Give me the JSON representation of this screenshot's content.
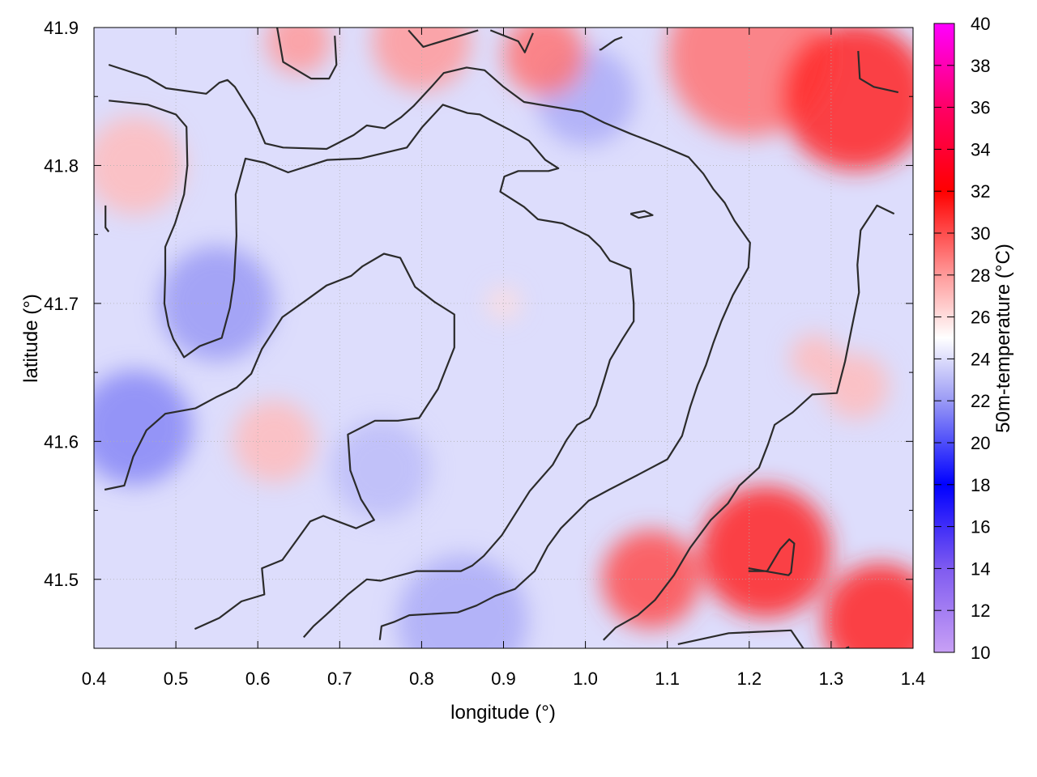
{
  "chart_data": {
    "type": "heatmap",
    "xlabel": "longitude (°)",
    "ylabel": "latitude (°)",
    "colorbar_label": "50m-temperature (°C)",
    "xlim": [
      0.4,
      1.4
    ],
    "ylim": [
      41.45,
      41.9
    ],
    "x_ticks": [
      "0.4",
      "0.5",
      "0.6",
      "0.7",
      "0.8",
      "0.9",
      "1.0",
      "1.1",
      "1.2",
      "1.3",
      "1.4"
    ],
    "y_ticks": [
      "41.5",
      "41.6",
      "41.7",
      "41.8",
      "41.9"
    ],
    "grid": true,
    "colorbar": {
      "min": 10,
      "max": 40,
      "ticks": [
        "10",
        "12",
        "14",
        "16",
        "18",
        "20",
        "22",
        "24",
        "26",
        "28",
        "30",
        "32",
        "34",
        "36",
        "38",
        "40"
      ],
      "colors": [
        {
          "t": 10,
          "color": "#c8a0f5"
        },
        {
          "t": 14,
          "color": "#7f5bf0"
        },
        {
          "t": 18,
          "color": "#0000ff"
        },
        {
          "t": 22,
          "color": "#9a9af5"
        },
        {
          "t": 25,
          "color": "#ffffff"
        },
        {
          "t": 28,
          "color": "#ff9a9a"
        },
        {
          "t": 32,
          "color": "#ff0000"
        },
        {
          "t": 36,
          "color": "#ff0066"
        },
        {
          "t": 40,
          "color": "#ff00ff"
        }
      ]
    },
    "base_temperature": 24,
    "warm_regions": [
      {
        "lon": 0.95,
        "lat": 41.88,
        "r": 0.05,
        "t": 29
      },
      {
        "lon": 0.8,
        "lat": 41.89,
        "r": 0.06,
        "t": 28
      },
      {
        "lon": 0.65,
        "lat": 41.89,
        "r": 0.04,
        "t": 28
      },
      {
        "lon": 1.2,
        "lat": 41.88,
        "r": 0.1,
        "t": 29
      },
      {
        "lon": 1.33,
        "lat": 41.85,
        "r": 0.09,
        "t": 31
      },
      {
        "lon": 0.45,
        "lat": 41.8,
        "r": 0.06,
        "t": 27
      },
      {
        "lon": 0.62,
        "lat": 41.6,
        "r": 0.05,
        "t": 27
      },
      {
        "lon": 1.08,
        "lat": 41.5,
        "r": 0.06,
        "t": 30
      },
      {
        "lon": 1.22,
        "lat": 41.52,
        "r": 0.08,
        "t": 31
      },
      {
        "lon": 1.36,
        "lat": 41.47,
        "r": 0.07,
        "t": 31
      },
      {
        "lon": 1.33,
        "lat": 41.64,
        "r": 0.04,
        "t": 27
      },
      {
        "lon": 1.28,
        "lat": 41.66,
        "r": 0.03,
        "t": 27
      },
      {
        "lon": 0.9,
        "lat": 41.7,
        "r": 0.02,
        "t": 26
      }
    ],
    "cool_regions": [
      {
        "lon": 0.55,
        "lat": 41.7,
        "r": 0.07,
        "t": 22
      },
      {
        "lon": 0.45,
        "lat": 41.61,
        "r": 0.07,
        "t": 21.5
      },
      {
        "lon": 1.0,
        "lat": 41.85,
        "r": 0.06,
        "t": 22.5
      },
      {
        "lon": 0.85,
        "lat": 41.47,
        "r": 0.08,
        "t": 22.5
      },
      {
        "lon": 0.75,
        "lat": 41.58,
        "r": 0.06,
        "t": 23
      }
    ],
    "contours": [
      {
        "points": [
          [
            0.418,
            41.873
          ],
          [
            0.465,
            41.864
          ],
          [
            0.488,
            41.856
          ],
          [
            0.537,
            41.852
          ],
          [
            0.553,
            41.86
          ],
          [
            0.563,
            41.862
          ],
          [
            0.572,
            41.857
          ],
          [
            0.596,
            41.834
          ],
          [
            0.609,
            41.816
          ],
          [
            0.631,
            41.813
          ],
          [
            0.684,
            41.812
          ],
          [
            0.717,
            41.822
          ],
          [
            0.733,
            41.829
          ],
          [
            0.755,
            41.827
          ],
          [
            0.775,
            41.835
          ],
          [
            0.79,
            41.843
          ],
          [
            0.812,
            41.857
          ],
          [
            0.827,
            41.867
          ],
          [
            0.855,
            41.871
          ],
          [
            0.877,
            41.869
          ],
          [
            0.9,
            41.857
          ],
          [
            0.925,
            41.846
          ],
          [
            0.996,
            41.839
          ],
          [
            1.023,
            41.831
          ],
          [
            1.055,
            41.823
          ],
          [
            1.09,
            41.815
          ],
          [
            1.126,
            41.806
          ],
          [
            1.144,
            41.794
          ],
          [
            1.156,
            41.783
          ],
          [
            1.17,
            41.773
          ],
          [
            1.182,
            41.76
          ],
          [
            1.201,
            41.744
          ],
          [
            1.199,
            41.726
          ],
          [
            1.18,
            41.706
          ],
          [
            1.166,
            41.687
          ],
          [
            1.156,
            41.671
          ],
          [
            1.147,
            41.655
          ],
          [
            1.137,
            41.641
          ],
          [
            1.128,
            41.625
          ],
          [
            1.118,
            41.604
          ],
          [
            1.1,
            41.587
          ],
          [
            1.065,
            41.576
          ],
          [
            1.029,
            41.565
          ],
          [
            1.004,
            41.557
          ],
          [
            0.97,
            41.537
          ],
          [
            0.954,
            41.524
          ],
          [
            0.938,
            41.506
          ],
          [
            0.914,
            41.493
          ],
          [
            0.89,
            41.488
          ],
          [
            0.867,
            41.481
          ],
          [
            0.844,
            41.476
          ],
          [
            0.785,
            41.474
          ],
          [
            0.766,
            41.469
          ],
          [
            0.751,
            41.466
          ],
          [
            0.749,
            41.456
          ]
        ]
      },
      {
        "points": [
          [
            0.418,
            41.847
          ],
          [
            0.466,
            41.844
          ],
          [
            0.5,
            41.837
          ],
          [
            0.513,
            41.828
          ],
          [
            0.514,
            41.8
          ],
          [
            0.51,
            41.779
          ],
          [
            0.499,
            41.758
          ],
          [
            0.487,
            41.741
          ],
          [
            0.487,
            41.721
          ],
          [
            0.486,
            41.7
          ],
          [
            0.491,
            41.684
          ],
          [
            0.497,
            41.674
          ],
          [
            0.51,
            41.661
          ],
          [
            0.529,
            41.669
          ],
          [
            0.556,
            41.675
          ],
          [
            0.566,
            41.697
          ],
          [
            0.571,
            41.717
          ],
          [
            0.574,
            41.749
          ],
          [
            0.573,
            41.779
          ],
          [
            0.585,
            41.805
          ],
          [
            0.608,
            41.802
          ],
          [
            0.637,
            41.795
          ],
          [
            0.685,
            41.804
          ],
          [
            0.725,
            41.805
          ],
          [
            0.782,
            41.813
          ],
          [
            0.801,
            41.828
          ],
          [
            0.826,
            41.844
          ],
          [
            0.856,
            41.838
          ],
          [
            0.871,
            41.837
          ],
          [
            0.907,
            41.826
          ],
          [
            0.931,
            41.818
          ],
          [
            0.951,
            41.804
          ],
          [
            0.967,
            41.798
          ],
          [
            0.955,
            41.796
          ],
          [
            0.918,
            41.796
          ],
          [
            0.901,
            41.792
          ],
          [
            0.896,
            41.781
          ],
          [
            0.925,
            41.77
          ],
          [
            0.942,
            41.761
          ],
          [
            0.972,
            41.758
          ],
          [
            1.004,
            41.749
          ],
          [
            1.018,
            41.741
          ],
          [
            1.03,
            41.731
          ],
          [
            1.055,
            41.725
          ],
          [
            1.059,
            41.7
          ],
          [
            1.059,
            41.687
          ],
          [
            1.045,
            41.674
          ],
          [
            1.03,
            41.659
          ],
          [
            1.022,
            41.643
          ],
          [
            1.013,
            41.626
          ],
          [
            1.005,
            41.617
          ],
          [
            0.99,
            41.612
          ],
          [
            0.977,
            41.601
          ],
          [
            0.96,
            41.583
          ],
          [
            0.932,
            41.564
          ],
          [
            0.916,
            41.549
          ],
          [
            0.898,
            41.532
          ],
          [
            0.876,
            41.517
          ],
          [
            0.862,
            41.51
          ],
          [
            0.848,
            41.506
          ],
          [
            0.794,
            41.506
          ],
          [
            0.768,
            41.502
          ],
          [
            0.75,
            41.499
          ],
          [
            0.733,
            41.5
          ],
          [
            0.71,
            41.489
          ],
          [
            0.683,
            41.474
          ],
          [
            0.668,
            41.466
          ],
          [
            0.656,
            41.458
          ]
        ]
      },
      {
        "points": [
          [
            0.413,
            41.565
          ],
          [
            0.437,
            41.568
          ],
          [
            0.448,
            41.589
          ],
          [
            0.464,
            41.608
          ],
          [
            0.487,
            41.62
          ],
          [
            0.524,
            41.624
          ],
          [
            0.549,
            41.632
          ],
          [
            0.574,
            41.639
          ],
          [
            0.592,
            41.649
          ],
          [
            0.605,
            41.667
          ],
          [
            0.63,
            41.69
          ],
          [
            0.656,
            41.701
          ],
          [
            0.684,
            41.713
          ],
          [
            0.714,
            41.72
          ],
          [
            0.728,
            41.727
          ],
          [
            0.754,
            41.736
          ],
          [
            0.774,
            41.733
          ],
          [
            0.792,
            41.712
          ],
          [
            0.816,
            41.701
          ],
          [
            0.84,
            41.692
          ],
          [
            0.84,
            41.668
          ],
          [
            0.82,
            41.638
          ],
          [
            0.797,
            41.617
          ],
          [
            0.771,
            41.615
          ],
          [
            0.743,
            41.615
          ],
          [
            0.71,
            41.605
          ],
          [
            0.713,
            41.579
          ],
          [
            0.726,
            41.558
          ],
          [
            0.742,
            41.543
          ],
          [
            0.72,
            41.537
          ],
          [
            0.68,
            41.546
          ],
          [
            0.664,
            41.542
          ],
          [
            0.647,
            41.528
          ],
          [
            0.63,
            41.514
          ],
          [
            0.605,
            41.508
          ],
          [
            0.608,
            41.489
          ],
          [
            0.58,
            41.484
          ],
          [
            0.553,
            41.472
          ],
          [
            0.523,
            41.464
          ]
        ]
      },
      {
        "points": [
          [
            0.414,
            41.771
          ],
          [
            0.414,
            41.755
          ],
          [
            0.418,
            41.752
          ]
        ]
      },
      {
        "points": [
          [
            0.623,
            41.902
          ],
          [
            0.631,
            41.875
          ],
          [
            0.665,
            41.863
          ],
          [
            0.687,
            41.863
          ],
          [
            0.696,
            41.873
          ],
          [
            0.694,
            41.894
          ]
        ]
      },
      {
        "points": [
          [
            0.784,
            41.898
          ],
          [
            0.802,
            41.886
          ],
          [
            0.869,
            41.898
          ]
        ]
      },
      {
        "points": [
          [
            0.884,
            41.898
          ],
          [
            0.918,
            41.89
          ],
          [
            0.926,
            41.882
          ],
          [
            0.936,
            41.896
          ]
        ]
      },
      {
        "points": [
          [
            1.017,
            41.884
          ],
          [
            1.019,
            41.884
          ],
          [
            1.036,
            41.891
          ],
          [
            1.045,
            41.893
          ]
        ]
      },
      {
        "points": [
          [
            1.055,
            41.765
          ],
          [
            1.072,
            41.767
          ],
          [
            1.082,
            41.764
          ],
          [
            1.065,
            41.762
          ],
          [
            1.055,
            41.765
          ]
        ]
      },
      {
        "points": [
          [
            1.333,
            41.883
          ],
          [
            1.335,
            41.863
          ],
          [
            1.352,
            41.857
          ],
          [
            1.382,
            41.853
          ]
        ]
      },
      {
        "points": [
          [
            1.377,
            41.765
          ],
          [
            1.356,
            41.771
          ],
          [
            1.336,
            41.753
          ],
          [
            1.332,
            41.728
          ],
          [
            1.334,
            41.708
          ],
          [
            1.325,
            41.682
          ],
          [
            1.317,
            41.658
          ],
          [
            1.307,
            41.635
          ],
          [
            1.277,
            41.634
          ],
          [
            1.253,
            41.621
          ],
          [
            1.231,
            41.612
          ],
          [
            1.223,
            41.598
          ],
          [
            1.212,
            41.581
          ],
          [
            1.188,
            41.568
          ],
          [
            1.174,
            41.555
          ],
          [
            1.153,
            41.543
          ],
          [
            1.128,
            41.523
          ],
          [
            1.108,
            41.503
          ],
          [
            1.085,
            41.485
          ],
          [
            1.064,
            41.474
          ],
          [
            1.037,
            41.465
          ],
          [
            1.022,
            41.456
          ]
        ]
      },
      {
        "points": [
          [
            1.199,
            41.506
          ],
          [
            1.222,
            41.506
          ],
          [
            1.238,
            41.522
          ],
          [
            1.249,
            41.529
          ],
          [
            1.255,
            41.526
          ],
          [
            1.251,
            41.505
          ],
          [
            1.248,
            41.503
          ],
          [
            1.199,
            41.508
          ]
        ]
      },
      {
        "points": [
          [
            1.113,
            41.453
          ],
          [
            1.175,
            41.461
          ],
          [
            1.251,
            41.463
          ],
          [
            1.266,
            41.45
          ]
        ]
      },
      {
        "points": [
          [
            1.318,
            41.45
          ],
          [
            1.322,
            41.451
          ]
        ]
      }
    ]
  }
}
